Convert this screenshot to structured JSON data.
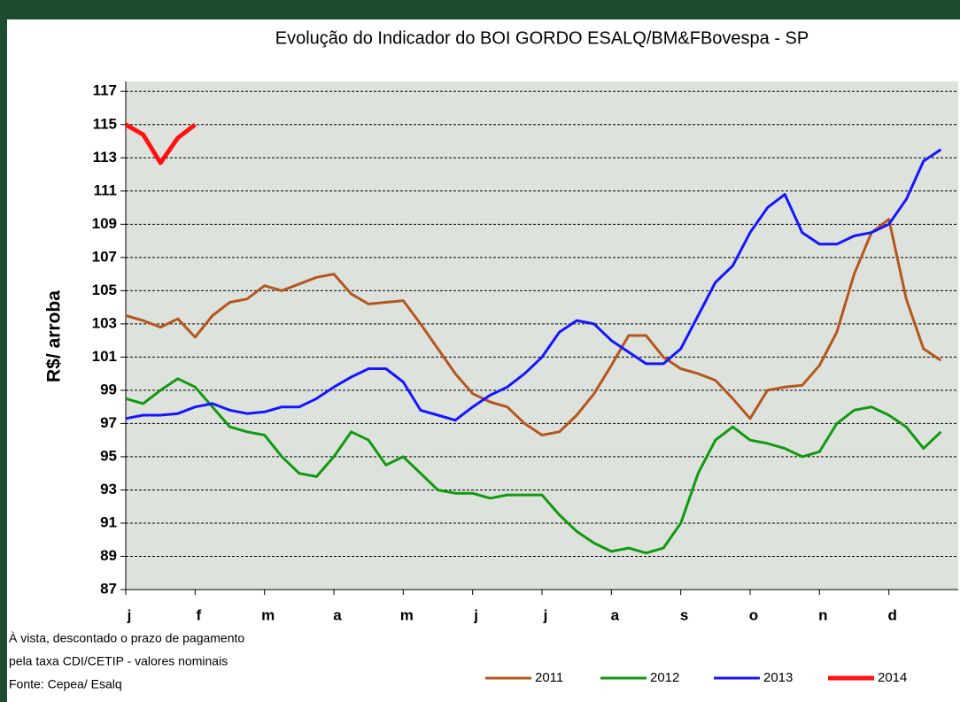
{
  "chart_data": {
    "type": "line",
    "title": "Evolução do Indicador do BOI GORDO  ESALQ/BM&FBovespa  - SP",
    "y_label": "R$/ arroba",
    "notes": [
      "À vista, descontado o prazo de pagamento",
      "pela taxa CDI/CETIP - valores nominais",
      "Fonte: Cepea/ Esalq"
    ],
    "categories": [
      "j",
      null,
      null,
      null,
      "f",
      null,
      null,
      null,
      "m",
      null,
      null,
      null,
      "a",
      null,
      null,
      null,
      "m",
      null,
      null,
      null,
      "j",
      null,
      null,
      null,
      "j",
      null,
      null,
      null,
      "a",
      null,
      null,
      null,
      "s",
      null,
      null,
      null,
      "o",
      null,
      null,
      null,
      "n",
      null,
      null,
      null,
      "d",
      null,
      null,
      null
    ],
    "ylim": [
      87,
      117.6
    ],
    "yticks": [
      87,
      89,
      91,
      93,
      95,
      97,
      99,
      101,
      103,
      105,
      107,
      109,
      111,
      113,
      115,
      117
    ],
    "grid": true,
    "legend": "bottom",
    "series": [
      {
        "name": "2011",
        "color": "#b5561f",
        "values": [
          103.5,
          103.2,
          102.8,
          103.3,
          102.2,
          103.5,
          104.3,
          104.5,
          105.3,
          105.0,
          105.4,
          105.8,
          106.0,
          104.8,
          104.2,
          104.3,
          104.4,
          103.0,
          101.5,
          100.0,
          98.8,
          98.3,
          98.0,
          97.0,
          96.3,
          96.5,
          97.5,
          98.8,
          100.5,
          102.3,
          102.3,
          101.0,
          100.3,
          100.0,
          99.6,
          98.5,
          97.3,
          99.0,
          99.2,
          99.3,
          100.5,
          102.5,
          106.0,
          108.5,
          109.3,
          104.5,
          101.5,
          100.8
        ]
      },
      {
        "name": "2012",
        "color": "#119911",
        "values": [
          98.5,
          98.2,
          99.0,
          99.7,
          99.2,
          98.0,
          96.8,
          96.5,
          96.3,
          95.0,
          94.0,
          93.8,
          95.0,
          96.5,
          96.0,
          94.5,
          95.0,
          94.0,
          93.0,
          92.8,
          92.8,
          92.5,
          92.7,
          92.7,
          92.7,
          91.5,
          90.5,
          89.8,
          89.3,
          89.5,
          89.2,
          89.5,
          91.0,
          94.0,
          96.0,
          96.8,
          96.0,
          95.8,
          95.5,
          95.0,
          95.3,
          97.0,
          97.8,
          98.0,
          97.5,
          96.8,
          95.5,
          96.5
        ]
      },
      {
        "name": "2013",
        "color": "#1515ff",
        "values": [
          97.3,
          97.5,
          97.5,
          97.6,
          98.0,
          98.2,
          97.8,
          97.6,
          97.7,
          98.0,
          98.0,
          98.5,
          99.2,
          99.8,
          100.3,
          100.3,
          99.5,
          97.8,
          97.5,
          97.2,
          98.0,
          98.7,
          99.2,
          100.0,
          101.0,
          102.5,
          103.2,
          103.0,
          102.0,
          101.3,
          100.6,
          100.6,
          101.5,
          103.5,
          105.5,
          106.5,
          108.5,
          110.0,
          110.8,
          108.5,
          107.8,
          107.8,
          108.3,
          108.5,
          109.0,
          110.5,
          112.8,
          113.5
        ]
      },
      {
        "name": "2014",
        "color": "#ff1111",
        "values": [
          115.0,
          114.4,
          112.7,
          114.2,
          115.0,
          null,
          null,
          null,
          null,
          null,
          null,
          null,
          null,
          null,
          null,
          null,
          null,
          null,
          null,
          null,
          null,
          null,
          null,
          null,
          null,
          null,
          null,
          null,
          null,
          null,
          null,
          null,
          null,
          null,
          null,
          null,
          null,
          null,
          null,
          null,
          null,
          null,
          null,
          null,
          null,
          null,
          null,
          null
        ]
      }
    ]
  }
}
